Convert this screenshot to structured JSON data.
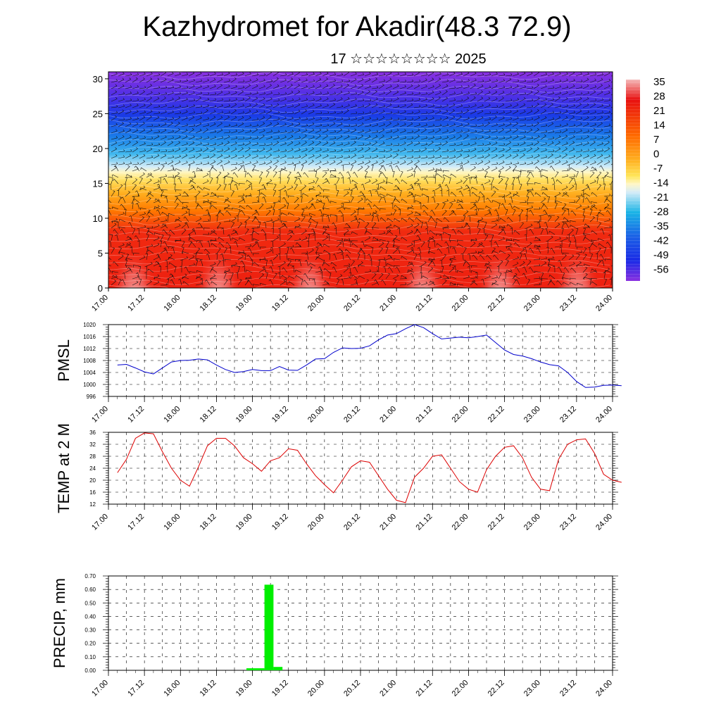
{
  "header": {
    "title": "Kazhydromet for Akadir(48.3 72.9)",
    "subtitle": "17 ☆☆☆☆☆☆☆☆ 2025"
  },
  "x_tick_labels": [
    "17.00",
    "17.12",
    "18.00",
    "18.12",
    "19.00",
    "19.12",
    "20.00",
    "20.12",
    "21.00",
    "21.12",
    "22.00",
    "22.12",
    "23.00",
    "23.12",
    "24.00"
  ],
  "chart_data": [
    {
      "type": "heatmap",
      "title": "",
      "xlabel": "",
      "ylabel": "",
      "x_range_hours": [
        0,
        168
      ],
      "ylim": [
        0,
        31
      ],
      "y_ticks": [
        0,
        5,
        10,
        15,
        20,
        25,
        30
      ],
      "colorbar_labels": [
        "35",
        "28",
        "21",
        "14",
        "7",
        "0",
        "-7",
        "-14",
        "-21",
        "-28",
        "-35",
        "-42",
        "-49",
        "-56"
      ],
      "colors": {
        "hot": "#f2a0a0",
        "red": "#e81010",
        "orange": "#ff8c00",
        "yellow": "#ffe65a",
        "pale": "#dfefff",
        "cyan": "#19b4e6",
        "blue": "#1a3ce6",
        "violet": "#8a30e0"
      },
      "description_levels": "temperature decreases with height; wind barbs overlaid"
    },
    {
      "type": "line",
      "ylabel": "PMSL",
      "ylim": [
        996,
        1020
      ],
      "y_ticks": [
        996,
        1000,
        1004,
        1008,
        1012,
        1016,
        1020
      ],
      "line_color": "#0000cc",
      "x_step_hours": 3,
      "x_start_hours": 3,
      "values": [
        1006.5,
        1006.7,
        1005.5,
        1004.2,
        1003.5,
        1005.5,
        1007.5,
        1008.0,
        1008.1,
        1008.5,
        1008.2,
        1006.5,
        1005.0,
        1004.0,
        1004.3,
        1005.0,
        1004.6,
        1004.6,
        1006.0,
        1004.8,
        1004.7,
        1006.5,
        1008.5,
        1008.6,
        1010.7,
        1012.2,
        1012.0,
        1012.1,
        1012.9,
        1014.9,
        1016.5,
        1017.0,
        1018.6,
        1020.0,
        1019.0,
        1017.0,
        1015.2,
        1015.5,
        1015.8,
        1015.6,
        1016.0,
        1016.5,
        1014.0,
        1011.5,
        1010.0,
        1009.5,
        1008.6,
        1007.5,
        1006.6,
        1006.2,
        1004.0,
        1001.0,
        999.0,
        999.1,
        999.7,
        999.8,
        999.6
      ]
    },
    {
      "type": "line",
      "ylabel": "TEMP at 2 M",
      "ylim": [
        12,
        36
      ],
      "y_ticks": [
        12,
        16,
        20,
        24,
        28,
        32,
        36
      ],
      "line_color": "#dd0000",
      "x_step_hours": 3,
      "x_start_hours": 3,
      "values": [
        22.5,
        27.0,
        34.0,
        35.8,
        35.5,
        29.5,
        24.0,
        20.0,
        18.0,
        24.5,
        31.5,
        34.0,
        34.0,
        31.5,
        27.5,
        25.5,
        23.0,
        26.5,
        27.5,
        30.5,
        30.0,
        25.5,
        21.5,
        18.5,
        15.8,
        20.0,
        24.5,
        26.5,
        26.0,
        21.5,
        17.0,
        13.3,
        12.5,
        21.0,
        24.0,
        28.0,
        28.5,
        24.0,
        19.5,
        17.0,
        16.0,
        23.5,
        28.0,
        31.0,
        31.5,
        27.5,
        21.0,
        17.0,
        16.5,
        27.0,
        32.0,
        33.5,
        33.8,
        29.0,
        22.0,
        20.0,
        19.3
      ]
    },
    {
      "type": "bar",
      "ylabel": "PRECIP, mm",
      "ylim": [
        0,
        0.7
      ],
      "y_ticks": [
        "0.00",
        "0.10",
        "0.20",
        "0.30",
        "0.40",
        "0.50",
        "0.60",
        "0.70"
      ],
      "bar_color": "#00ee00",
      "bars": [
        {
          "start_hours": 46,
          "end_hours": 52,
          "value": 0.01
        },
        {
          "start_hours": 52,
          "end_hours": 55,
          "value": 0.63
        },
        {
          "start_hours": 55,
          "end_hours": 58,
          "value": 0.02
        }
      ]
    }
  ]
}
